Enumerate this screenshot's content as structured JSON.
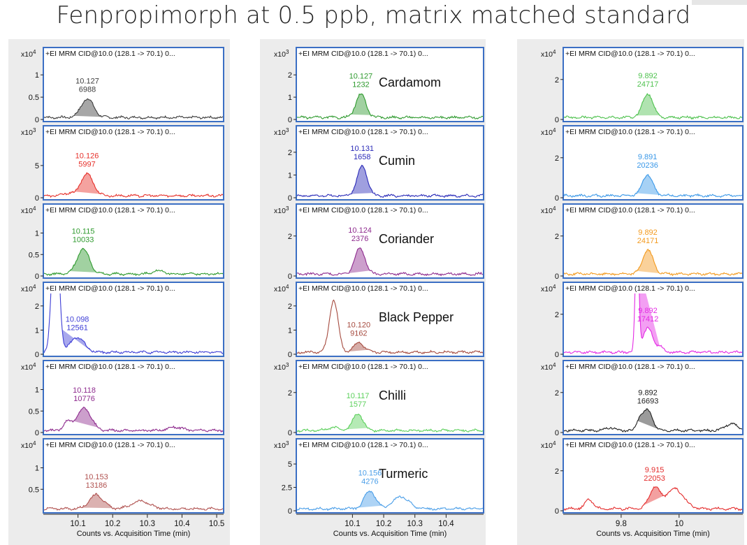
{
  "title": "Fenpropimorph at 0.5 ppb, matrix matched standard",
  "trace_label": "+EI MRM CID@10.0 (128.1 -> 70.1) 0...",
  "x_axis_label": "Counts vs. Acquisition Time (min)",
  "chart_data": [
    {
      "type": "line",
      "column": 1,
      "row": 1,
      "sample": "",
      "exponent": "4",
      "y_ticks": [
        "1",
        "0.5",
        "0"
      ],
      "y_tick_values": [
        1,
        0.5,
        0
      ],
      "ylim": [
        0,
        1.3
      ],
      "xlim": [
        10.0,
        10.52
      ],
      "peak_rt": "10.127",
      "peak_area": "6988",
      "peak_x": 10.127,
      "peak_height": 0.42,
      "peak_width": 0.018,
      "color": "#3c3c3c",
      "features": []
    },
    {
      "type": "line",
      "column": 1,
      "row": 2,
      "sample": "",
      "exponent": "3",
      "y_ticks": [
        "5",
        "0"
      ],
      "y_tick_values": [
        5,
        0
      ],
      "ylim": [
        0,
        9
      ],
      "xlim": [
        10.0,
        10.52
      ],
      "peak_rt": "10.126",
      "peak_area": "5997",
      "peak_x": 10.126,
      "peak_height": 3.4,
      "peak_width": 0.018,
      "color": "#e6302a",
      "features": [
        [
          10.07,
          0.4,
          0.012
        ]
      ]
    },
    {
      "type": "line",
      "column": 1,
      "row": 3,
      "sample": "",
      "exponent": "4",
      "y_ticks": [
        "1",
        "0.5",
        "0"
      ],
      "y_tick_values": [
        1,
        0.5,
        0
      ],
      "ylim": [
        0,
        1.35
      ],
      "xlim": [
        10.0,
        10.52
      ],
      "peak_rt": "10.115",
      "peak_area": "10033",
      "peak_x": 10.115,
      "peak_height": 0.58,
      "peak_width": 0.018,
      "color": "#2e9a2e",
      "features": [
        [
          10.33,
          0.08,
          0.015
        ]
      ]
    },
    {
      "type": "line",
      "column": 1,
      "row": 4,
      "sample": "",
      "exponent": "4",
      "y_ticks": [
        "2",
        "1",
        "0"
      ],
      "y_tick_values": [
        2,
        1,
        0
      ],
      "ylim": [
        0,
        2.4
      ],
      "xlim": [
        10.0,
        10.52
      ],
      "peak_rt": "10.098",
      "peak_area": "12561",
      "peak_x": 10.098,
      "peak_height": 0.62,
      "peak_width": 0.02,
      "color": "#3d3dd6",
      "features": [
        [
          10.035,
          6.0,
          0.01
        ]
      ]
    },
    {
      "type": "line",
      "column": 1,
      "row": 5,
      "sample": "",
      "exponent": "4",
      "y_ticks": [
        "1",
        "0.5",
        "0"
      ],
      "y_tick_values": [
        1,
        0.5,
        0
      ],
      "ylim": [
        0,
        1.35
      ],
      "xlim": [
        10.0,
        10.52
      ],
      "peak_rt": "10.118",
      "peak_area": "10776",
      "peak_x": 10.118,
      "peak_height": 0.52,
      "peak_width": 0.02,
      "color": "#8e2b8e",
      "features": [
        [
          10.07,
          0.2,
          0.012
        ],
        [
          10.38,
          0.08,
          0.02
        ]
      ]
    },
    {
      "type": "line",
      "column": 1,
      "row": 6,
      "sample": "",
      "exponent": "4",
      "y_ticks": [
        "1",
        "0.5"
      ],
      "y_tick_values": [
        1,
        0.5
      ],
      "ylim": [
        0,
        1.35
      ],
      "xlim": [
        10.0,
        10.52
      ],
      "peak_rt": "10.153",
      "peak_area": "13186",
      "peak_x": 10.153,
      "peak_height": 0.33,
      "peak_width": 0.02,
      "color": "#b0514f",
      "features": [
        [
          10.28,
          0.18,
          0.025
        ]
      ]
    },
    {
      "type": "line",
      "column": 2,
      "row": 1,
      "sample": "Cardamom",
      "exponent": "3",
      "y_ticks": [
        "2",
        "1",
        "0"
      ],
      "y_tick_values": [
        2,
        1,
        0
      ],
      "ylim": [
        0,
        2.6
      ],
      "xlim": [
        9.92,
        10.52
      ],
      "peak_rt": "10.127",
      "peak_area": "1232",
      "peak_x": 10.127,
      "peak_height": 1.05,
      "peak_width": 0.016,
      "color": "#2e9a2e",
      "features": []
    },
    {
      "type": "line",
      "column": 2,
      "row": 2,
      "sample": "Cumin",
      "exponent": "3",
      "y_ticks": [
        "2",
        "1",
        "0"
      ],
      "y_tick_values": [
        2,
        1,
        0
      ],
      "ylim": [
        0,
        2.55
      ],
      "xlim": [
        9.92,
        10.52
      ],
      "peak_rt": "10.131",
      "peak_area": "1658",
      "peak_x": 10.131,
      "peak_height": 1.3,
      "peak_width": 0.016,
      "color": "#2a2ab8",
      "features": []
    },
    {
      "type": "line",
      "column": 2,
      "row": 3,
      "sample": "Coriander",
      "exponent": "3",
      "y_ticks": [
        "2",
        "0"
      ],
      "y_tick_values": [
        2,
        0
      ],
      "ylim": [
        0,
        2.9
      ],
      "xlim": [
        9.92,
        10.52
      ],
      "peak_rt": "10.124",
      "peak_area": "2376",
      "peak_x": 10.124,
      "peak_height": 1.3,
      "peak_width": 0.016,
      "color": "#8e2b8e",
      "features": []
    },
    {
      "type": "line",
      "column": 2,
      "row": 4,
      "sample": "Black Pepper",
      "exponent": "4",
      "y_ticks": [
        "2",
        "1",
        "0"
      ],
      "y_tick_values": [
        2,
        1,
        0
      ],
      "ylim": [
        0,
        2.4
      ],
      "xlim": [
        9.92,
        10.52
      ],
      "peak_rt": "10.120",
      "peak_area": "9162",
      "peak_x": 10.12,
      "peak_height": 0.4,
      "peak_width": 0.016,
      "color": "#a54a3e",
      "features": [
        [
          10.04,
          2.15,
          0.014
        ]
      ]
    },
    {
      "type": "line",
      "column": 2,
      "row": 5,
      "sample": "Chilli",
      "exponent": "3",
      "y_ticks": [
        "2",
        "0"
      ],
      "y_tick_values": [
        2,
        0
      ],
      "ylim": [
        0,
        2.9
      ],
      "xlim": [
        9.92,
        10.52
      ],
      "peak_rt": "10.117",
      "peak_area": "1577",
      "peak_x": 10.117,
      "peak_height": 0.85,
      "peak_width": 0.016,
      "color": "#5bd05b",
      "features": [
        [
          10.04,
          0.15,
          0.02
        ]
      ]
    },
    {
      "type": "line",
      "column": 2,
      "row": 6,
      "sample": "Turmeric",
      "exponent": "3",
      "y_ticks": [
        "5",
        "2.5",
        "0"
      ],
      "y_tick_values": [
        5,
        2.5,
        0
      ],
      "ylim": [
        0,
        6.2
      ],
      "xlim": [
        9.92,
        10.52
      ],
      "peak_rt": "10.156",
      "peak_area": "4276",
      "peak_x": 10.156,
      "peak_height": 1.9,
      "peak_width": 0.018,
      "color": "#4a9ee8",
      "features": [
        [
          10.255,
          1.3,
          0.025
        ]
      ]
    },
    {
      "type": "line",
      "column": 3,
      "row": 1,
      "sample": "",
      "exponent": "4",
      "y_ticks": [
        "2",
        "0"
      ],
      "y_tick_values": [
        2,
        0
      ],
      "ylim": [
        0,
        2.9
      ],
      "xlim": [
        9.6,
        10.22
      ],
      "peak_rt": "9.892",
      "peak_area": "24717",
      "peak_x": 9.892,
      "peak_height": 1.2,
      "peak_width": 0.018,
      "color": "#4fc24f",
      "features": []
    },
    {
      "type": "line",
      "column": 3,
      "row": 2,
      "sample": "",
      "exponent": "4",
      "y_ticks": [
        "2",
        "0"
      ],
      "y_tick_values": [
        2,
        0
      ],
      "ylim": [
        0,
        2.9
      ],
      "xlim": [
        9.6,
        10.22
      ],
      "peak_rt": "9.891",
      "peak_area": "20236",
      "peak_x": 9.891,
      "peak_height": 1.05,
      "peak_width": 0.018,
      "color": "#3a98e8",
      "features": []
    },
    {
      "type": "line",
      "column": 3,
      "row": 3,
      "sample": "",
      "exponent": "4",
      "y_ticks": [
        "2",
        "0"
      ],
      "y_tick_values": [
        2,
        0
      ],
      "ylim": [
        0,
        2.9
      ],
      "xlim": [
        9.6,
        10.22
      ],
      "peak_rt": "9.892",
      "peak_area": "24171",
      "peak_x": 9.892,
      "peak_height": 1.2,
      "peak_width": 0.018,
      "color": "#f39a1e",
      "features": []
    },
    {
      "type": "line",
      "column": 3,
      "row": 4,
      "sample": "",
      "exponent": "4",
      "y_ticks": [
        "2",
        "0"
      ],
      "y_tick_values": [
        2,
        0
      ],
      "ylim": [
        0,
        2.9
      ],
      "xlim": [
        9.6,
        10.22
      ],
      "peak_rt": "9.892",
      "peak_area": "17412",
      "peak_x": 9.892,
      "peak_height": 1.2,
      "peak_width": 0.018,
      "color": "#e42be4",
      "features": [
        [
          9.855,
          6.0,
          0.006
        ],
        [
          9.935,
          0.25,
          0.01
        ]
      ]
    },
    {
      "type": "line",
      "column": 3,
      "row": 5,
      "sample": "",
      "exponent": "4",
      "y_ticks": [
        "2",
        "0"
      ],
      "y_tick_values": [
        2,
        0
      ],
      "ylim": [
        0,
        2.9
      ],
      "xlim": [
        9.6,
        10.22
      ],
      "peak_rt": "9.892",
      "peak_area": "16693",
      "peak_x": 9.892,
      "peak_height": 1.0,
      "peak_width": 0.016,
      "color": "#222222",
      "features": [
        [
          9.865,
          0.55,
          0.01
        ],
        [
          10.18,
          0.35,
          0.02
        ],
        [
          9.76,
          0.15,
          0.015
        ]
      ]
    },
    {
      "type": "line",
      "column": 3,
      "row": 6,
      "sample": "",
      "exponent": "4",
      "y_ticks": [
        "2",
        "0"
      ],
      "y_tick_values": [
        2,
        0
      ],
      "ylim": [
        0,
        2.9
      ],
      "xlim": [
        9.6,
        10.22
      ],
      "peak_rt": "9.915",
      "peak_area": "22053",
      "peak_x": 9.915,
      "peak_height": 1.05,
      "peak_width": 0.018,
      "color": "#e42d2d",
      "features": [
        [
          9.69,
          0.45,
          0.015
        ],
        [
          9.985,
          1.0,
          0.03
        ]
      ]
    }
  ],
  "x_ticks": [
    {
      "column": 1,
      "labels": [
        "10.1",
        "10.2",
        "10.3",
        "10.4",
        "10.5"
      ],
      "values": [
        10.1,
        10.2,
        10.3,
        10.4,
        10.5
      ]
    },
    {
      "column": 2,
      "labels": [
        "10.1",
        "10.2",
        "10.3",
        "10.4"
      ],
      "values": [
        10.1,
        10.2,
        10.3,
        10.4
      ]
    },
    {
      "column": 3,
      "labels": [
        "9.8",
        "10"
      ],
      "values": [
        9.8,
        10.0
      ]
    }
  ]
}
